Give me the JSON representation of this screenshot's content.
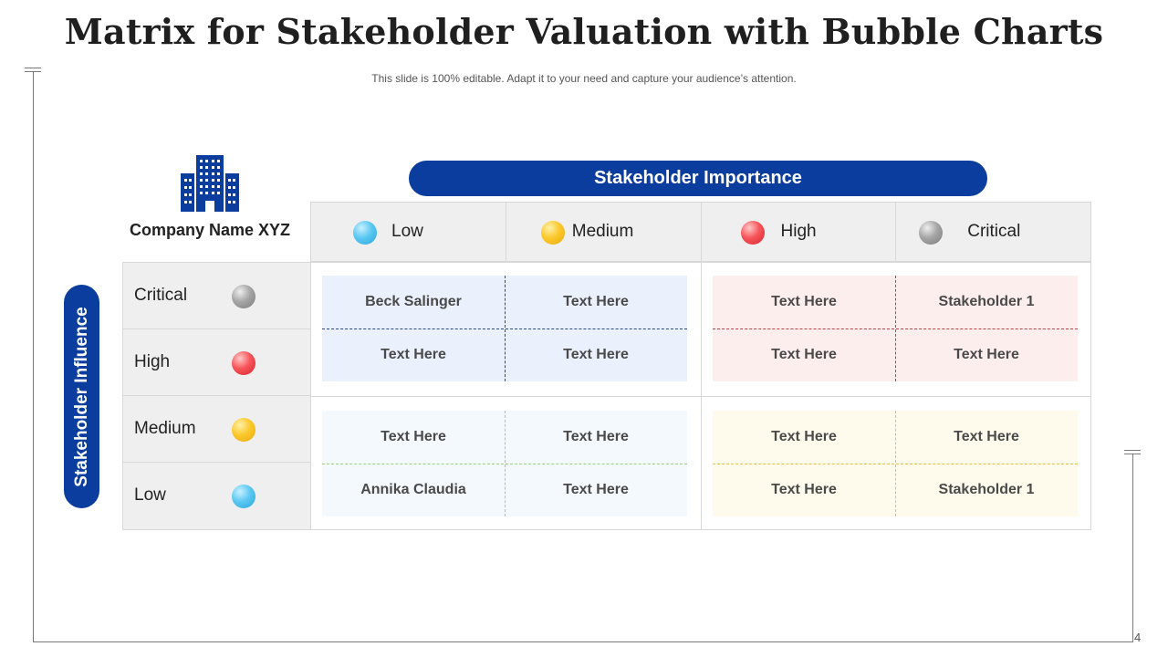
{
  "title": "Matrix for Stakeholder Valuation with Bubble Charts",
  "subtitle": "This slide is 100% editable. Adapt it to your need and capture your audience’s attention.",
  "page_number": "4",
  "company": {
    "name": "Company Name XYZ",
    "icon": "building-icon"
  },
  "importance": {
    "label": "Stakeholder Importance",
    "levels": [
      {
        "label": "Low",
        "color": "#4fc3ef"
      },
      {
        "label": "Medium",
        "color": "#f9c22a"
      },
      {
        "label": "High",
        "color": "#f04a50"
      },
      {
        "label": "Critical",
        "color": "#9b9b9b"
      }
    ]
  },
  "influence": {
    "label": "Stakeholder Influence",
    "levels": [
      {
        "label": "Critical",
        "color": "#9b9b9b"
      },
      {
        "label": "High",
        "color": "#f04a50"
      },
      {
        "label": "Medium",
        "color": "#f9c22a"
      },
      {
        "label": "Low",
        "color": "#4fc3ef"
      }
    ]
  },
  "quadrants": {
    "top_left": {
      "color": "#eaf1fd",
      "cells": [
        "Beck Salinger",
        "Text Here",
        "Text Here",
        "Text Here"
      ]
    },
    "top_right": {
      "color": "#fdeeee",
      "cells": [
        "Text Here",
        "Stakeholder 1",
        "Text Here",
        "Text Here"
      ]
    },
    "bottom_left": {
      "color": "#f3f9fd",
      "cells": [
        "Text Here",
        "Text Here",
        "Annika Claudia",
        "Text Here"
      ]
    },
    "bottom_right": {
      "color": "#fffbec",
      "cells": [
        "Text Here",
        "Text Here",
        "Text Here",
        "Stakeholder 1"
      ]
    }
  }
}
